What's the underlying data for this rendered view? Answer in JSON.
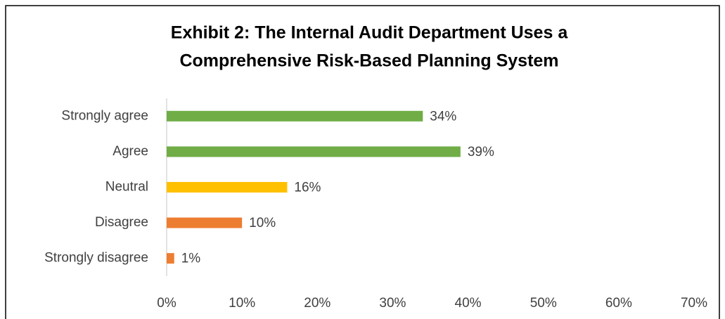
{
  "chart_data": {
    "type": "bar",
    "orientation": "horizontal",
    "title": [
      "Exhibit 2: The Internal Audit Department Uses a",
      "Comprehensive Risk-Based Planning System"
    ],
    "categories": [
      "Strongly agree",
      "Agree",
      "Neutral",
      "Disagree",
      "Strongly disagree"
    ],
    "values": [
      34,
      39,
      16,
      10,
      1
    ],
    "value_labels": [
      "34%",
      "39%",
      "16%",
      "10%",
      "1%"
    ],
    "colors": [
      "#70ad47",
      "#70ad47",
      "#ffc000",
      "#ed7d31",
      "#ed7d31"
    ],
    "xlim": [
      0,
      70
    ],
    "xticks": [
      {
        "value": 0,
        "label": "0%"
      },
      {
        "value": 10,
        "label": "10%"
      },
      {
        "value": 20,
        "label": "20%"
      },
      {
        "value": 30,
        "label": "30%"
      },
      {
        "value": 40,
        "label": "40%"
      },
      {
        "value": 50,
        "label": "50%"
      },
      {
        "value": 60,
        "label": "60%"
      },
      {
        "value": 70,
        "label": "70%"
      }
    ],
    "grid": false
  }
}
